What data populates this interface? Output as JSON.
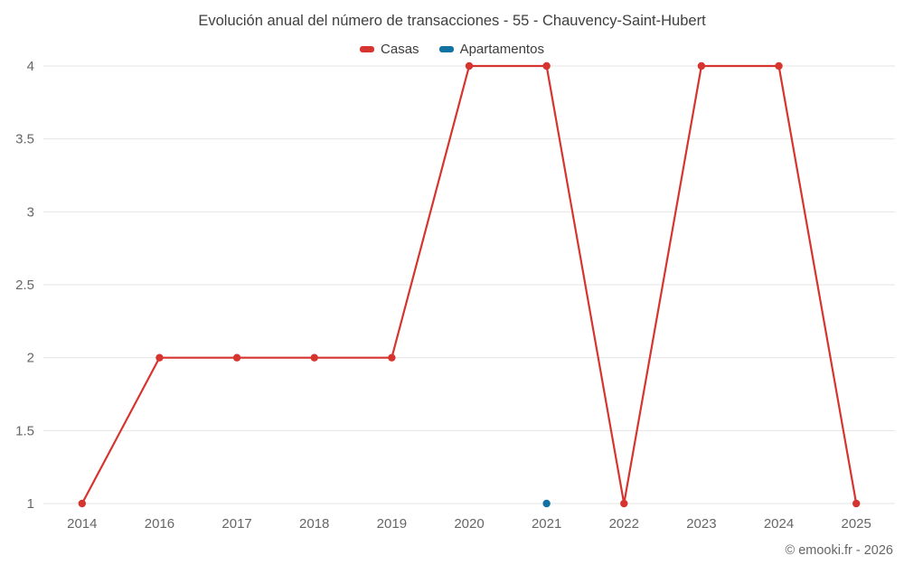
{
  "title": "Evolución anual del número de transacciones - 55 - Chauvency-Saint-Hubert",
  "footer": "© emooki.fr - 2026",
  "chart_data": {
    "type": "line",
    "title": "Evolución anual del número de transacciones - 55 - Chauvency-Saint-Hubert",
    "categories": [
      "2014",
      "2016",
      "2017",
      "2018",
      "2019",
      "2020",
      "2021",
      "2022",
      "2023",
      "2024",
      "2025"
    ],
    "series": [
      {
        "name": "Casas",
        "color": "#d6342e",
        "values": [
          1,
          2,
          2,
          2,
          2,
          4,
          4,
          1,
          4,
          4,
          1
        ]
      },
      {
        "name": "Apartamentos",
        "color": "#1173a3",
        "values": [
          null,
          null,
          null,
          null,
          null,
          null,
          1,
          null,
          null,
          null,
          null
        ]
      }
    ],
    "ylim": [
      1,
      4
    ],
    "yticks": [
      1,
      1.5,
      2,
      2.5,
      3,
      3.5,
      4
    ],
    "grid": "horizontal",
    "legend_position": "top",
    "xlabel": "",
    "ylabel": ""
  }
}
